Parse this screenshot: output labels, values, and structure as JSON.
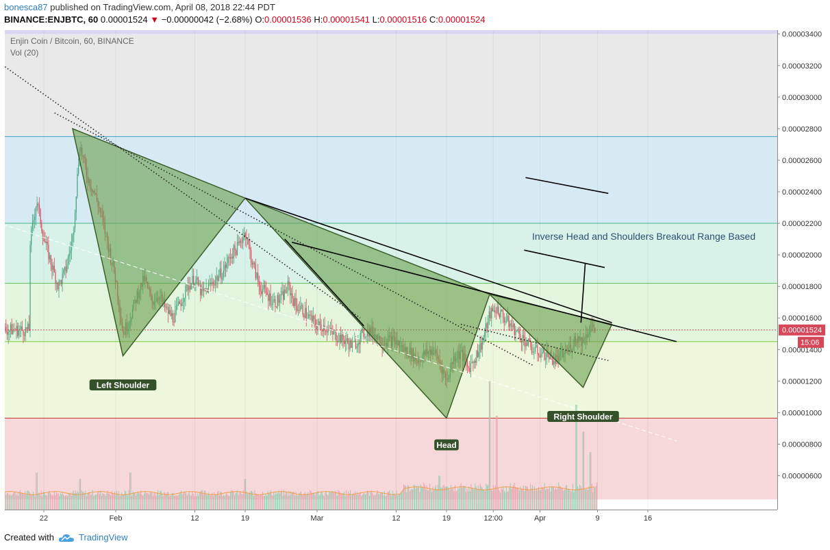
{
  "header": {
    "user": "bonesca87",
    "published": "published on TradingView.com, April 08, 2018 22:44 PDT",
    "symbol": "BINANCE:ENJBTC, 60",
    "last": "0.00001524",
    "change_arrow": "▼",
    "change": "−0.00000042 (−2.68%)",
    "o_label": "O:",
    "o_value": "0.00001536",
    "h_label": "H:",
    "h_value": "0.00001541",
    "l_label": "L:",
    "l_value": "0.00001516",
    "c_label": "C:",
    "c_value": "0.00001524"
  },
  "footer": {
    "created_with": "Created with",
    "brand": "TradingView",
    "brand_icon": "tradingview-cloud-icon"
  },
  "chart_data": {
    "type": "candlestick",
    "title": "Enjin Coin / Bitcoin, 60, BINANCE",
    "indicator": "Vol (20)",
    "y_ticks": [
      "0.00003400",
      "0.00003200",
      "0.00003000",
      "0.00002800",
      "0.00002600",
      "0.00002400",
      "0.00002200",
      "0.00002000",
      "0.00001800",
      "0.00001600",
      "0.00001400",
      "0.00001200",
      "0.00001000",
      "0.00000800",
      "0.00000600"
    ],
    "y_tick_values": [
      3.4,
      3.2,
      3.0,
      2.8,
      2.6,
      2.4,
      2.2,
      2.0,
      1.8,
      1.6,
      1.4,
      1.2,
      1.0,
      0.8,
      0.6
    ],
    "x_ticks": [
      {
        "label": "22",
        "day": 0
      },
      {
        "label": "Feb",
        "day": 10
      },
      {
        "label": "12",
        "day": 21
      },
      {
        "label": "19",
        "day": 28
      },
      {
        "label": "Mar",
        "day": 38
      },
      {
        "label": "12",
        "day": 49
      },
      {
        "label": "19",
        "day": 56
      },
      {
        "label": "12:00",
        "day": 62.5
      },
      {
        "label": "Apr",
        "day": 69
      },
      {
        "label": "9",
        "day": 77
      },
      {
        "label": "16",
        "day": 84
      }
    ],
    "price_label": "0.00001524",
    "time_label": "15:06",
    "colors": {
      "up": "#3fa27a",
      "down": "#d7475a",
      "pattern_fill": "#6b9e4f",
      "pattern_stroke": "#3b5f2a",
      "label_bg": "#35512a"
    },
    "zones": [
      {
        "from": 3.45,
        "to": 3.4,
        "color": "#d9d6f2"
      },
      {
        "from": 3.4,
        "to": 2.75,
        "color": "#e9e9e9"
      },
      {
        "from": 2.75,
        "to": 2.2,
        "color": "#d6eaf3"
      },
      {
        "from": 2.2,
        "to": 1.82,
        "color": "#d8f2e9"
      },
      {
        "from": 1.82,
        "to": 1.45,
        "color": "#e3f5dc"
      },
      {
        "from": 1.45,
        "to": 0.965,
        "color": "#eef7dc"
      },
      {
        "from": 0.965,
        "to": 0.45,
        "color": "#f6d8da"
      }
    ],
    "hlines": [
      {
        "y": 3.45,
        "color": "#b8b0e6"
      },
      {
        "y": 2.75,
        "color": "#3fa0c8"
      },
      {
        "y": 2.2,
        "color": "#47b58a"
      },
      {
        "y": 1.82,
        "color": "#5cbf5c"
      },
      {
        "y": 1.45,
        "color": "#82c93c"
      },
      {
        "y": 0.965,
        "color": "#c0392b"
      }
    ],
    "current_price": 1.524,
    "price_path": [
      [
        -2,
        2.05
      ],
      [
        -1,
        2.35
      ],
      [
        0,
        2.1
      ],
      [
        1,
        1.95
      ],
      [
        2,
        1.8
      ],
      [
        3,
        1.9
      ],
      [
        4,
        2.1
      ],
      [
        5,
        2.7
      ],
      [
        6,
        2.5
      ],
      [
        7,
        2.4
      ],
      [
        8,
        2.25
      ],
      [
        9,
        2.05
      ],
      [
        10,
        1.85
      ],
      [
        11,
        1.5
      ],
      [
        12,
        1.6
      ],
      [
        13,
        1.75
      ],
      [
        14,
        1.85
      ],
      [
        15,
        1.7
      ],
      [
        16,
        1.75
      ],
      [
        17,
        1.65
      ],
      [
        18,
        1.6
      ],
      [
        19,
        1.7
      ],
      [
        20,
        1.8
      ],
      [
        21,
        1.85
      ],
      [
        22,
        1.75
      ],
      [
        23,
        1.8
      ],
      [
        24,
        1.85
      ],
      [
        25,
        1.9
      ],
      [
        26,
        2.0
      ],
      [
        27,
        2.05
      ],
      [
        28,
        2.15
      ],
      [
        29,
        1.95
      ],
      [
        30,
        1.8
      ],
      [
        31,
        1.75
      ],
      [
        32,
        1.7
      ],
      [
        33,
        1.72
      ],
      [
        34,
        1.8
      ],
      [
        35,
        1.68
      ],
      [
        36,
        1.65
      ],
      [
        37,
        1.6
      ],
      [
        38,
        1.55
      ],
      [
        39,
        1.55
      ],
      [
        40,
        1.5
      ],
      [
        41,
        1.48
      ],
      [
        42,
        1.45
      ],
      [
        43,
        1.42
      ],
      [
        44,
        1.48
      ],
      [
        45,
        1.52
      ],
      [
        46,
        1.5
      ],
      [
        47,
        1.45
      ],
      [
        48,
        1.46
      ],
      [
        49,
        1.45
      ],
      [
        50,
        1.4
      ],
      [
        51,
        1.38
      ],
      [
        52,
        1.33
      ],
      [
        53,
        1.37
      ],
      [
        54,
        1.4
      ],
      [
        55,
        1.33
      ],
      [
        56,
        1.2
      ],
      [
        57,
        1.35
      ],
      [
        58,
        1.38
      ],
      [
        59,
        1.28
      ],
      [
        60,
        1.35
      ],
      [
        61,
        1.45
      ],
      [
        62,
        1.62
      ],
      [
        63,
        1.66
      ],
      [
        64,
        1.6
      ],
      [
        65,
        1.55
      ],
      [
        66,
        1.5
      ],
      [
        67,
        1.45
      ],
      [
        68,
        1.4
      ],
      [
        69,
        1.38
      ],
      [
        70,
        1.37
      ],
      [
        71,
        1.33
      ],
      [
        72,
        1.36
      ],
      [
        73,
        1.4
      ],
      [
        74,
        1.48
      ],
      [
        75,
        1.45
      ],
      [
        76,
        1.55
      ],
      [
        76.8,
        1.524
      ]
    ],
    "volume": {
      "baseline_value": 0.45,
      "spikes": [
        {
          "day": -1,
          "v": 0.62
        },
        {
          "day": 5,
          "v": 0.58
        },
        {
          "day": 12,
          "v": 0.62
        },
        {
          "day": 28,
          "v": 0.58
        },
        {
          "day": 55,
          "v": 0.6
        },
        {
          "day": 62,
          "v": 1.2
        },
        {
          "day": 63,
          "v": 0.98
        },
        {
          "day": 74,
          "v": 1.05
        },
        {
          "day": 75,
          "v": 0.88
        },
        {
          "day": 76,
          "v": 0.75
        }
      ]
    },
    "pattern": [
      {
        "type": "triangle",
        "points": [
          [
            4,
            2.8
          ],
          [
            11,
            1.36
          ],
          [
            28,
            2.36
          ]
        ]
      },
      {
        "type": "triangle",
        "points": [
          [
            28,
            2.36
          ],
          [
            56,
            0.965
          ],
          [
            62,
            1.75
          ]
        ]
      },
      {
        "type": "triangle",
        "points": [
          [
            62,
            1.75
          ],
          [
            75,
            1.16
          ],
          [
            79,
            1.56
          ]
        ]
      }
    ],
    "pattern_labels": [
      {
        "text": "Left Shoulder",
        "day": 11,
        "y": 1.18
      },
      {
        "text": "Head",
        "day": 56,
        "y": 0.8
      },
      {
        "text": "Right Shoulder",
        "day": 75,
        "y": 0.98
      }
    ],
    "trendlines": [
      {
        "style": "solid",
        "from": [
          34.5,
          2.08
        ],
        "to": [
          88,
          1.45
        ]
      },
      {
        "style": "solid",
        "from": [
          28,
          2.36
        ],
        "to": [
          79,
          1.57
        ]
      },
      {
        "style": "solid",
        "from": [
          33.5,
          2.1
        ],
        "to": [
          44.5,
          1.55
        ]
      },
      {
        "style": "solid",
        "from": [
          67,
          2.49
        ],
        "to": [
          78.5,
          2.39
        ]
      },
      {
        "style": "solid",
        "from": [
          66.8,
          2.03
        ],
        "to": [
          78,
          1.92
        ]
      },
      {
        "style": "solid",
        "from": [
          74.7,
          1.57
        ],
        "to": [
          75.3,
          1.95
        ]
      },
      {
        "style": "dotted",
        "from": [
          -7.5,
          3.26
        ],
        "to": [
          44,
          1.6
        ]
      },
      {
        "style": "dotted",
        "from": [
          1.5,
          2.9
        ],
        "to": [
          68,
          1.3
        ]
      },
      {
        "style": "dotted",
        "from": [
          58,
          1.56
        ],
        "to": [
          78.5,
          1.33
        ]
      },
      {
        "style": "dashed-light",
        "from": [
          -7.5,
          2.22
        ],
        "to": [
          88,
          0.82
        ]
      }
    ],
    "annotation": "Inverse Head and Shoulders Breakout Range Based"
  }
}
